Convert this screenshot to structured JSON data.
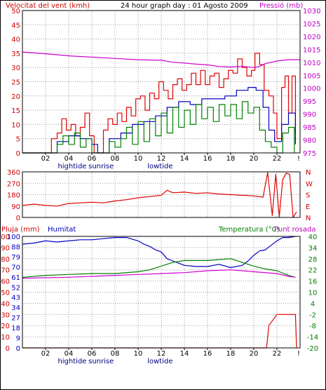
{
  "colors": {
    "wind": "#e00000",
    "gust": "#e00000",
    "avg_wind": "#0000c0",
    "min_wind": "#008000",
    "pressure": "#d000d0",
    "direction": "#e00000",
    "rain": "#e00000",
    "humidity": "#0000c0",
    "temperature": "#008000",
    "dewpoint": "#d000d0",
    "grid": "#9a9a9a",
    "frame": "#000000"
  },
  "header": {
    "wind_title": "Velocitat del vent (kmh)",
    "graph_title": "24 hour graph day : 01 Agosto 2009",
    "pressure_title": "Pressió (mb)"
  },
  "lower_header": {
    "rain_title": "Pluja (mm)",
    "humidity_title": "Humitat",
    "temperature_title": "Temperatura (°C)",
    "dewpoint_title": "Punt rosada"
  },
  "time_ticks": [
    "02",
    "04",
    "06",
    "08",
    "10",
    "12",
    "14",
    "16",
    "18",
    "20",
    "22"
  ],
  "tide_labels": [
    {
      "text": "hightide",
      "hour": 4.3
    },
    {
      "text": "sunrise",
      "hour": 6.8
    },
    {
      "text": "lowtide",
      "hour": 11.9
    }
  ],
  "chart_data": [
    {
      "type": "line",
      "title": "",
      "ylabel": "Velocitat del vent (kmh)",
      "y2label": "Pressió (mb)",
      "ylim": [
        0,
        50
      ],
      "y2lim": [
        975,
        1030
      ],
      "xlim": [
        0,
        24
      ],
      "x_ticks": [
        "02",
        "04",
        "06",
        "08",
        "10",
        "12",
        "14",
        "16",
        "18",
        "20",
        "22"
      ],
      "y_ticks": [
        0,
        5,
        10,
        15,
        20,
        25,
        30,
        35,
        40,
        45,
        50
      ],
      "y2_ticks": [
        975,
        980,
        985,
        990,
        995,
        1000,
        1005,
        1010,
        1015,
        1020,
        1025,
        1030
      ],
      "grid": true,
      "series": [
        {
          "name": "gust",
          "axis": "left",
          "x": [
            0,
            1.5,
            2.4,
            2.5,
            3,
            3.4,
            3.8,
            4.2,
            4.6,
            5,
            5.4,
            5.8,
            6.2,
            6.6,
            7,
            7.4,
            7.8,
            8.2,
            8.6,
            9,
            9.4,
            9.8,
            10.2,
            10.6,
            11,
            11.4,
            11.8,
            12.2,
            12.6,
            13,
            13.4,
            13.8,
            14.2,
            14.6,
            15,
            15.4,
            15.8,
            16.2,
            16.6,
            17,
            17.4,
            17.8,
            18.2,
            18.6,
            19,
            19.4,
            19.8,
            20.1,
            20.5,
            20.9,
            21.3,
            21.7,
            22,
            22.4,
            22.7,
            23,
            23.3,
            23.6
          ],
          "y": [
            0,
            0,
            0,
            5,
            7,
            12,
            8,
            10,
            6,
            9,
            14,
            6,
            0,
            0,
            8,
            12,
            10,
            14,
            11,
            16,
            13,
            19,
            20,
            15,
            21,
            19,
            25,
            22,
            19,
            24,
            26,
            22,
            24,
            28,
            24,
            29,
            24,
            27,
            28,
            23,
            26,
            29,
            28,
            33,
            30,
            27,
            29,
            35,
            31,
            22,
            20,
            14,
            5,
            23,
            27,
            14,
            27,
            7
          ]
        },
        {
          "name": "average",
          "axis": "left",
          "x": [
            0,
            2,
            3,
            4,
            5,
            6,
            6.5,
            7.5,
            8.5,
            9.5,
            10.5,
            11.5,
            12.5,
            13.5,
            14.5,
            15.5,
            16.5,
            17.5,
            18.5,
            19.5,
            20.2,
            20.8,
            21.3,
            21.8,
            22.4,
            23,
            23.6
          ],
          "y": [
            0,
            0,
            4,
            6,
            5,
            3,
            0,
            5,
            7,
            10,
            11,
            13,
            16,
            18,
            17,
            19,
            19,
            20,
            22,
            23,
            22,
            16,
            8,
            4,
            10,
            14,
            3
          ]
        },
        {
          "name": "minimum",
          "axis": "left",
          "x": [
            0,
            2.5,
            3,
            3.5,
            4,
            4.5,
            5,
            5.5,
            6,
            7,
            7.5,
            8,
            8.5,
            9,
            9.5,
            10,
            10.5,
            11,
            11.5,
            12,
            12.5,
            13,
            13.5,
            14,
            14.5,
            15,
            15.5,
            16,
            16.5,
            17,
            17.5,
            18,
            18.5,
            19,
            19.5,
            20,
            20.5,
            21,
            21.5,
            22,
            22.5,
            23,
            23.5
          ],
          "y": [
            0,
            0,
            3,
            6,
            3,
            7,
            2,
            5,
            0,
            0,
            4,
            2,
            5,
            9,
            3,
            11,
            4,
            12,
            6,
            14,
            7,
            16,
            9,
            15,
            10,
            17,
            12,
            16,
            11,
            17,
            13,
            17,
            12,
            18,
            14,
            16,
            8,
            4,
            2,
            0,
            7,
            9,
            0
          ]
        },
        {
          "name": "pressure",
          "axis": "right",
          "x": [
            0,
            2,
            4,
            6,
            8,
            10,
            12,
            13,
            14,
            15,
            16,
            17,
            18,
            19,
            20,
            20.5,
            21,
            22,
            23,
            24
          ],
          "y": [
            1014,
            1013.3,
            1012.5,
            1012,
            1011.5,
            1011,
            1010.8,
            1010,
            1009.7,
            1009.3,
            1009,
            1008.4,
            1008.2,
            1008.4,
            1008,
            1008.4,
            1009.5,
            1010.5,
            1011,
            1011
          ]
        }
      ]
    },
    {
      "type": "line",
      "title": "",
      "ylabel": "",
      "ylim": [
        0,
        360
      ],
      "y_ticks": [
        0,
        90,
        180,
        270,
        360
      ],
      "y2_ticks": [
        "N",
        "E",
        "S",
        "W",
        "N"
      ],
      "xlim": [
        0,
        24
      ],
      "grid": true,
      "series": [
        {
          "name": "direction",
          "x": [
            0,
            1,
            2,
            3,
            4,
            5,
            6,
            7,
            8,
            9,
            10,
            11,
            12,
            12.5,
            13,
            14,
            15,
            16,
            17,
            18,
            19,
            20,
            20.8,
            21.2,
            21.6,
            21.9,
            22.2,
            22.5,
            22.8,
            23.1,
            23.4,
            23.7
          ],
          "y": [
            95,
            105,
            95,
            90,
            110,
            115,
            120,
            115,
            130,
            140,
            155,
            165,
            175,
            215,
            195,
            200,
            190,
            195,
            185,
            180,
            175,
            170,
            160,
            355,
            15,
            340,
            5,
            300,
            350,
            340,
            0,
            45
          ]
        }
      ]
    },
    {
      "type": "line",
      "title": "",
      "ylabel": "Pluja (mm)",
      "y2label": "Temperatura (°C)",
      "ylim": [
        0,
        100
      ],
      "y2lim": [
        -20,
        40
      ],
      "xlim": [
        0,
        24
      ],
      "y_ticks": [
        0,
        10,
        20,
        30,
        40,
        50,
        60,
        70,
        80,
        90,
        100
      ],
      "y_ticks_inner": [
        0,
        9,
        18,
        27,
        34,
        43,
        52,
        61,
        70,
        79,
        88,
        100
      ],
      "y2_ticks": [
        -20,
        -14,
        -8,
        -2,
        4,
        10,
        16,
        22,
        28,
        34,
        40
      ],
      "grid": true,
      "series": [
        {
          "name": "Humitat",
          "axis": "left",
          "x": [
            0,
            1,
            2,
            3,
            4,
            5,
            6,
            7,
            8,
            9,
            10,
            10.5,
            11,
            11.5,
            12,
            12.5,
            13,
            13.5,
            14,
            15,
            16,
            17,
            18,
            19,
            19.5,
            20,
            20.5,
            21,
            21.5,
            22,
            22.5,
            23,
            23.6
          ],
          "y": [
            93,
            94,
            96,
            95,
            96,
            97,
            97,
            98,
            99,
            99,
            96,
            93,
            91,
            88,
            86,
            80,
            78,
            76,
            74,
            73,
            73,
            75,
            72,
            74,
            78,
            83,
            87,
            88,
            92,
            96,
            99,
            99,
            100
          ]
        },
        {
          "name": "Temperatura (°C)",
          "axis": "right",
          "x": [
            0,
            2,
            4,
            6,
            8,
            10,
            11,
            12,
            13,
            14,
            15,
            16,
            17,
            18,
            19,
            20,
            21,
            22,
            23,
            23.6
          ],
          "y": [
            18,
            19,
            19.5,
            20,
            20,
            21,
            22,
            24,
            26,
            27,
            27,
            27,
            27.5,
            28,
            26,
            24,
            22.5,
            21.5,
            19,
            18
          ]
        },
        {
          "name": "Punt rosada",
          "axis": "right",
          "x": [
            0,
            4,
            8,
            10,
            12,
            14,
            16,
            18,
            20,
            22,
            23,
            23.6
          ],
          "y": [
            17.5,
            18,
            19,
            19.5,
            20,
            20.5,
            21.5,
            22,
            21,
            20,
            18.5,
            18
          ]
        },
        {
          "name": "Pluja (mm)",
          "axis": "left",
          "x": [
            0,
            20.8,
            21.1,
            21.3,
            22.0,
            23.6,
            23.7
          ],
          "y": [
            0,
            0,
            0,
            4,
            6,
            6,
            0
          ]
        }
      ]
    }
  ]
}
